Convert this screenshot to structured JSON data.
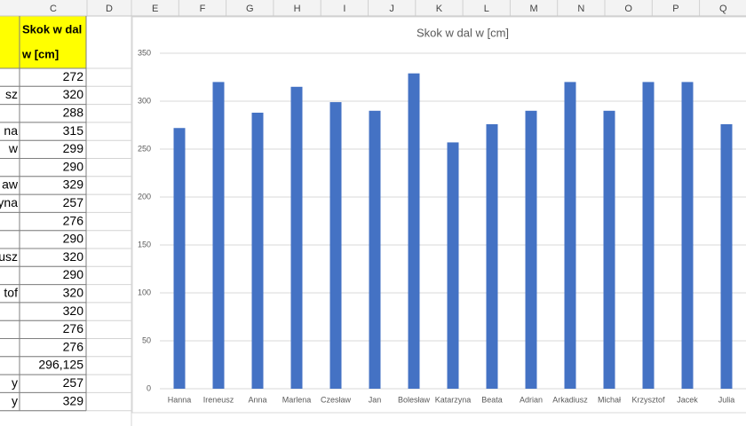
{
  "sheet": {
    "columns": [
      "C",
      "D",
      "E",
      "F",
      "G",
      "H",
      "I",
      "J",
      "K",
      "L",
      "M",
      "N",
      "O",
      "P",
      "Q"
    ],
    "header": {
      "lines": [
        "Skok w dal",
        "w [cm]"
      ]
    },
    "rows": [
      [
        "",
        "272"
      ],
      [
        "sz",
        "320"
      ],
      [
        "",
        "288"
      ],
      [
        "na",
        "315"
      ],
      [
        "w",
        "299"
      ],
      [
        "",
        "290"
      ],
      [
        "aw",
        "329"
      ],
      [
        "yna",
        "257"
      ],
      [
        "",
        "276"
      ],
      [
        "",
        "290"
      ],
      [
        "usz",
        "320"
      ],
      [
        "",
        "290"
      ],
      [
        "tof",
        "320"
      ],
      [
        "",
        "320"
      ],
      [
        "",
        "276"
      ],
      [
        "",
        "276"
      ],
      [
        "",
        "296,125"
      ],
      [
        "y",
        "257"
      ],
      [
        "y",
        "329"
      ]
    ]
  },
  "chart_data": {
    "type": "bar",
    "title": "Skok w dal w [cm]",
    "categories": [
      "Hanna",
      "Ireneusz",
      "Anna",
      "Marlena",
      "Czesław",
      "Jan",
      "Bolesław",
      "Katarzyna",
      "Beata",
      "Adrian",
      "Arkadiusz",
      "Michał",
      "Krzysztof",
      "Jacek",
      "Julia"
    ],
    "values": [
      272,
      320,
      288,
      315,
      299,
      290,
      329,
      257,
      276,
      290,
      320,
      290,
      320,
      320,
      276
    ],
    "color": "#4472c4",
    "ylim": [
      0,
      350
    ],
    "yticks": [
      0,
      50,
      100,
      150,
      200,
      250,
      300,
      350
    ],
    "grid": true
  }
}
